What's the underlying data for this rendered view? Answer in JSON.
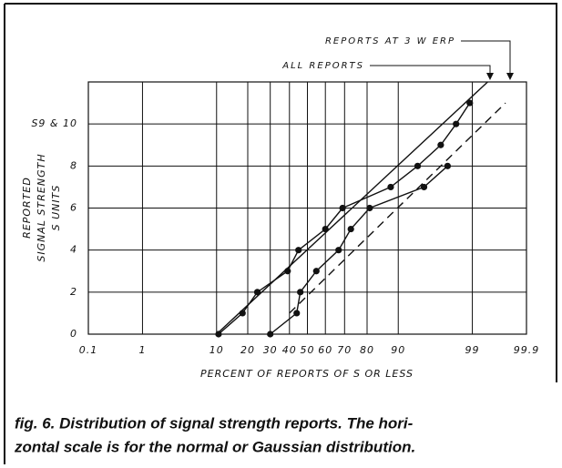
{
  "chart_data": {
    "type": "line",
    "xscale": "probit",
    "ylabel": [
      "REPORTED",
      "SIGNAL STRENGTH",
      "S UNITS"
    ],
    "xlabel": "PERCENT OF REPORTS OF S OR LESS",
    "caption": [
      "fig. 6. Distribution of signal strength reports. The hori-",
      "zontal scale is for the normal or Gaussian distribution."
    ],
    "xlim": [
      0.1,
      99.9
    ],
    "ylim": [
      0,
      12
    ],
    "xticks": [
      {
        "value": 0.1,
        "label": "0.1"
      },
      1,
      10,
      20,
      30,
      40,
      50,
      60,
      70,
      80,
      90,
      99,
      {
        "value": 99.9,
        "label": "99.9"
      }
    ],
    "yticks": [
      0,
      2,
      4,
      6,
      8,
      {
        "value": 10,
        "label": "S9 & 10"
      }
    ],
    "grid": true,
    "series": [
      {
        "name": "ALL REPORTS",
        "color": "#111111",
        "x": [
          10.5,
          18,
          24,
          39,
          45,
          60,
          69,
          88,
          94,
          97,
          98.2,
          98.9
        ],
        "values": [
          0,
          1,
          2,
          3,
          4,
          5,
          6,
          7,
          8,
          9,
          10,
          11
        ],
        "fit": {
          "x": [
            10,
            99.45
          ],
          "values": [
            0,
            12
          ],
          "dashed": false
        }
      },
      {
        "name": "REPORTS AT 3 W ERP",
        "color": "#111111",
        "x": [
          30,
          44,
          46,
          55,
          67,
          73,
          81,
          95,
          97.6
        ],
        "values": [
          0,
          1,
          2,
          3,
          4,
          5,
          6,
          7,
          8
        ],
        "fit": {
          "x": [
            40,
            99.74
          ],
          "values": [
            1,
            11
          ],
          "dashed": true
        }
      }
    ]
  }
}
